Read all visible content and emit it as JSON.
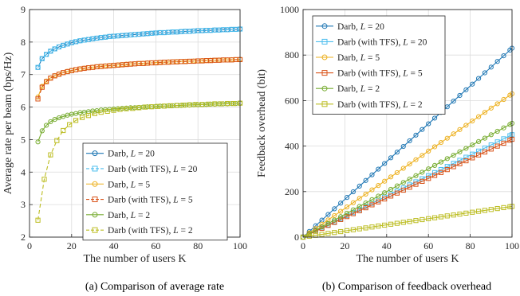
{
  "chart_data": [
    {
      "type": "line",
      "caption": "(a) Comparison of average rate",
      "xlabel": "The number of users K",
      "ylabel": "Average rate per beam (bps/Hz)",
      "xlim": [
        0,
        100
      ],
      "ylim": [
        2,
        9
      ],
      "xticks": [
        0,
        20,
        40,
        60,
        80,
        100
      ],
      "yticks": [
        2,
        3,
        4,
        5,
        6,
        7,
        8,
        9
      ],
      "grid": true,
      "legend_position": "center-right",
      "series": [
        {
          "name": "Darb, L = 20",
          "prefix": "Darb, ",
          "L": "20",
          "color": "#1f77b4",
          "marker": "circle",
          "dash": false,
          "x": [
            4,
            6,
            8,
            10,
            12,
            14,
            16,
            18,
            20,
            22,
            24,
            26,
            28,
            30,
            32,
            34,
            36,
            38,
            40,
            42,
            44,
            46,
            48,
            50,
            52,
            54,
            56,
            58,
            60,
            62,
            64,
            66,
            68,
            70,
            72,
            74,
            76,
            78,
            80,
            82,
            84,
            86,
            88,
            90,
            92,
            94,
            96,
            98,
            100
          ],
          "y": [
            7.22,
            7.49,
            7.62,
            7.72,
            7.79,
            7.85,
            7.9,
            7.94,
            7.98,
            8.01,
            8.04,
            8.06,
            8.08,
            8.1,
            8.12,
            8.14,
            8.15,
            8.17,
            8.18,
            8.19,
            8.2,
            8.21,
            8.22,
            8.23,
            8.24,
            8.25,
            8.26,
            8.27,
            8.28,
            8.29,
            8.29,
            8.3,
            8.31,
            8.31,
            8.32,
            8.33,
            8.33,
            8.34,
            8.35,
            8.35,
            8.36,
            8.36,
            8.37,
            8.37,
            8.38,
            8.38,
            8.39,
            8.39,
            8.4
          ]
        },
        {
          "name": "Darb (with TFS), L = 20",
          "prefix": "Darb (with TFS), ",
          "L": "20",
          "color": "#4dbeee",
          "marker": "square",
          "dash": true,
          "x": [
            4,
            6,
            8,
            10,
            12,
            14,
            16,
            18,
            20,
            22,
            24,
            26,
            28,
            30,
            32,
            34,
            36,
            38,
            40,
            42,
            44,
            46,
            48,
            50,
            52,
            54,
            56,
            58,
            60,
            62,
            64,
            66,
            68,
            70,
            72,
            74,
            76,
            78,
            80,
            82,
            84,
            86,
            88,
            90,
            92,
            94,
            96,
            98,
            100
          ],
          "y": [
            7.22,
            7.49,
            7.62,
            7.72,
            7.79,
            7.85,
            7.9,
            7.94,
            7.98,
            8.01,
            8.04,
            8.06,
            8.08,
            8.1,
            8.12,
            8.14,
            8.15,
            8.17,
            8.18,
            8.19,
            8.2,
            8.21,
            8.22,
            8.23,
            8.24,
            8.25,
            8.26,
            8.27,
            8.28,
            8.29,
            8.29,
            8.3,
            8.31,
            8.31,
            8.32,
            8.33,
            8.33,
            8.34,
            8.35,
            8.35,
            8.36,
            8.36,
            8.37,
            8.37,
            8.38,
            8.38,
            8.39,
            8.39,
            8.4
          ]
        },
        {
          "name": "Darb, L = 5",
          "prefix": "Darb, ",
          "L": "5",
          "color": "#edb120",
          "marker": "circle",
          "dash": false,
          "x": [
            4,
            6,
            8,
            10,
            12,
            14,
            16,
            18,
            20,
            22,
            24,
            26,
            28,
            30,
            32,
            34,
            36,
            38,
            40,
            42,
            44,
            46,
            48,
            50,
            52,
            54,
            56,
            58,
            60,
            62,
            64,
            66,
            68,
            70,
            72,
            74,
            76,
            78,
            80,
            82,
            84,
            86,
            88,
            90,
            92,
            94,
            96,
            98,
            100
          ],
          "y": [
            6.31,
            6.64,
            6.8,
            6.9,
            6.97,
            7.02,
            7.06,
            7.1,
            7.13,
            7.15,
            7.18,
            7.2,
            7.21,
            7.23,
            7.24,
            7.26,
            7.27,
            7.28,
            7.29,
            7.3,
            7.31,
            7.32,
            7.33,
            7.33,
            7.34,
            7.35,
            7.36,
            7.36,
            7.37,
            7.38,
            7.38,
            7.39,
            7.39,
            7.4,
            7.4,
            7.41,
            7.41,
            7.42,
            7.42,
            7.43,
            7.43,
            7.44,
            7.44,
            7.45,
            7.45,
            7.45,
            7.46,
            7.46,
            7.47
          ]
        },
        {
          "name": "Darb (with TFS), L = 5",
          "prefix": "Darb (with TFS), ",
          "L": "5",
          "color": "#d95319",
          "marker": "square",
          "dash": true,
          "x": [
            4,
            6,
            8,
            10,
            12,
            14,
            16,
            18,
            20,
            22,
            24,
            26,
            28,
            30,
            32,
            34,
            36,
            38,
            40,
            42,
            44,
            46,
            48,
            50,
            52,
            54,
            56,
            58,
            60,
            62,
            64,
            66,
            68,
            70,
            72,
            74,
            76,
            78,
            80,
            82,
            84,
            86,
            88,
            90,
            92,
            94,
            96,
            98,
            100
          ],
          "y": [
            6.25,
            6.61,
            6.78,
            6.89,
            6.96,
            7.01,
            7.06,
            7.09,
            7.12,
            7.15,
            7.17,
            7.19,
            7.21,
            7.22,
            7.24,
            7.25,
            7.26,
            7.27,
            7.28,
            7.29,
            7.3,
            7.31,
            7.32,
            7.33,
            7.34,
            7.34,
            7.35,
            7.36,
            7.36,
            7.37,
            7.38,
            7.38,
            7.39,
            7.39,
            7.4,
            7.4,
            7.41,
            7.41,
            7.42,
            7.42,
            7.43,
            7.43,
            7.44,
            7.44,
            7.45,
            7.45,
            7.45,
            7.46,
            7.46
          ]
        },
        {
          "name": "Darb, L = 2",
          "prefix": "Darb, ",
          "L": "2",
          "color": "#77ac30",
          "marker": "circle",
          "dash": false,
          "x": [
            4,
            6,
            8,
            10,
            12,
            14,
            16,
            18,
            20,
            22,
            24,
            26,
            28,
            30,
            32,
            34,
            36,
            38,
            40,
            42,
            44,
            46,
            48,
            50,
            52,
            54,
            56,
            58,
            60,
            62,
            64,
            66,
            68,
            70,
            72,
            74,
            76,
            78,
            80,
            82,
            84,
            86,
            88,
            90,
            92,
            94,
            96,
            98,
            100
          ],
          "y": [
            4.93,
            5.27,
            5.44,
            5.55,
            5.62,
            5.67,
            5.71,
            5.75,
            5.78,
            5.8,
            5.83,
            5.84,
            5.86,
            5.88,
            5.89,
            5.91,
            5.92,
            5.93,
            5.94,
            5.95,
            5.96,
            5.97,
            5.98,
            5.98,
            5.99,
            6.0,
            6.01,
            6.01,
            6.02,
            6.03,
            6.03,
            6.04,
            6.04,
            6.05,
            6.05,
            6.06,
            6.06,
            6.07,
            6.07,
            6.08,
            6.08,
            6.09,
            6.09,
            6.1,
            6.1,
            6.1,
            6.11,
            6.11,
            6.12
          ]
        },
        {
          "name": "Darb (with TFS), L = 2",
          "prefix": "Darb (with TFS), ",
          "L": "2",
          "color": "#bcbd22",
          "marker": "square",
          "dash": true,
          "x": [
            4,
            7,
            10,
            13,
            16,
            19,
            22,
            25,
            28,
            31,
            34,
            37,
            40,
            43,
            46,
            49,
            52,
            55,
            58,
            61,
            64,
            67,
            70,
            73,
            76,
            79,
            82,
            85,
            88,
            91,
            94,
            97,
            100
          ],
          "y": [
            2.52,
            3.78,
            4.53,
            4.97,
            5.28,
            5.46,
            5.59,
            5.68,
            5.74,
            5.8,
            5.84,
            5.87,
            5.9,
            5.93,
            5.95,
            5.96,
            5.98,
            6.0,
            6.01,
            6.02,
            6.03,
            6.04,
            6.05,
            6.06,
            6.07,
            6.08,
            6.08,
            6.09,
            6.1,
            6.1,
            6.11,
            6.11,
            6.12
          ]
        }
      ]
    },
    {
      "type": "line",
      "caption": "(b) Comparison of feedback overhead",
      "xlabel": "The number of users K",
      "ylabel": "Feedback overhead (bit)",
      "xlim": [
        0,
        100
      ],
      "ylim": [
        0,
        1000
      ],
      "xticks": [
        0,
        20,
        40,
        60,
        80,
        100
      ],
      "yticks": [
        0,
        200,
        400,
        600,
        800,
        1000
      ],
      "grid": true,
      "legend_position": "top-left",
      "series": [
        {
          "name": "Darb, L = 20",
          "prefix": "Darb, ",
          "L": "20",
          "color": "#1f77b4",
          "marker": "circle",
          "dash": false,
          "x_start": 0,
          "x_end": 100,
          "x_step": 3,
          "slope": 8.3
        },
        {
          "name": "Darb (with TFS), L = 20",
          "prefix": "Darb (with TFS), ",
          "L": "20",
          "color": "#4dbeee",
          "marker": "square",
          "dash": false,
          "x_start": 0,
          "x_end": 100,
          "x_step": 3,
          "slope": 4.5
        },
        {
          "name": "Darb, L = 5",
          "prefix": "Darb, ",
          "L": "5",
          "color": "#edb120",
          "marker": "circle",
          "dash": false,
          "x_start": 0,
          "x_end": 100,
          "x_step": 3,
          "slope": 6.3
        },
        {
          "name": "Darb (with TFS), L = 5",
          "prefix": "Darb (with TFS), ",
          "L": "5",
          "color": "#d95319",
          "marker": "square",
          "dash": false,
          "x_start": 0,
          "x_end": 100,
          "x_step": 3,
          "slope": 4.3
        },
        {
          "name": "Darb, L = 2",
          "prefix": "Darb, ",
          "L": "2",
          "color": "#77ac30",
          "marker": "circle",
          "dash": false,
          "x_start": 0,
          "x_end": 100,
          "x_step": 3,
          "slope": 5.0
        },
        {
          "name": "Darb (with TFS), L = 2",
          "prefix": "Darb (with TFS), ",
          "L": "2",
          "color": "#bcbd22",
          "marker": "square",
          "dash": false,
          "x_start": 0,
          "x_end": 100,
          "x_step": 3,
          "slope": 1.35
        }
      ]
    }
  ]
}
